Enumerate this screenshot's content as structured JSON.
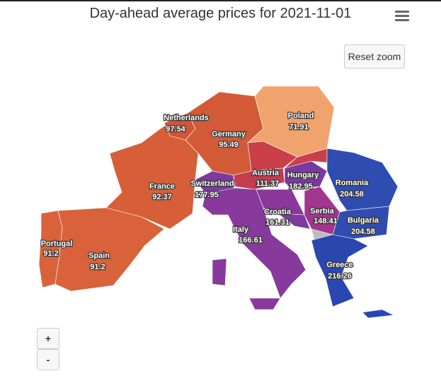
{
  "title": "Day-ahead average prices for 2021-11-01",
  "buttons": {
    "reset_zoom": "Reset zoom",
    "zoom_in": "+",
    "zoom_out": "-"
  },
  "regions": [
    {
      "name": "Portugal",
      "value": 91.2,
      "color": "#d9623a"
    },
    {
      "name": "Spain",
      "value": 91.2,
      "color": "#d9623a"
    },
    {
      "name": "France",
      "value": 92.37,
      "color": "#d65f38"
    },
    {
      "name": "Netherlands",
      "value": 97.54,
      "color": "#cf5636"
    },
    {
      "name": "Germany",
      "value": 95.49,
      "color": "#d25a37"
    },
    {
      "name": "Poland",
      "value": 71.91,
      "color": "#f0a36d"
    },
    {
      "name": "Switzerland",
      "value": 177.95,
      "color": "#7f3a9e"
    },
    {
      "name": "Austria",
      "value": 111.37,
      "color": "#c23d4f"
    },
    {
      "name": "Hungary",
      "value": 182.95,
      "color": "#7a3aa0"
    },
    {
      "name": "Italy",
      "value": 166.61,
      "color": "#88399c"
    },
    {
      "name": "Croatia",
      "value": 161.31,
      "color": "#8a389b"
    },
    {
      "name": "Serbia",
      "value": 148.41,
      "color": "#a2358e"
    },
    {
      "name": "Romania",
      "value": 204.58,
      "color": "#2f4db0"
    },
    {
      "name": "Bulgaria",
      "value": 204.58,
      "color": "#2f4db0"
    },
    {
      "name": "Greece",
      "value": 216.26,
      "color": "#2a47b0"
    }
  ]
}
